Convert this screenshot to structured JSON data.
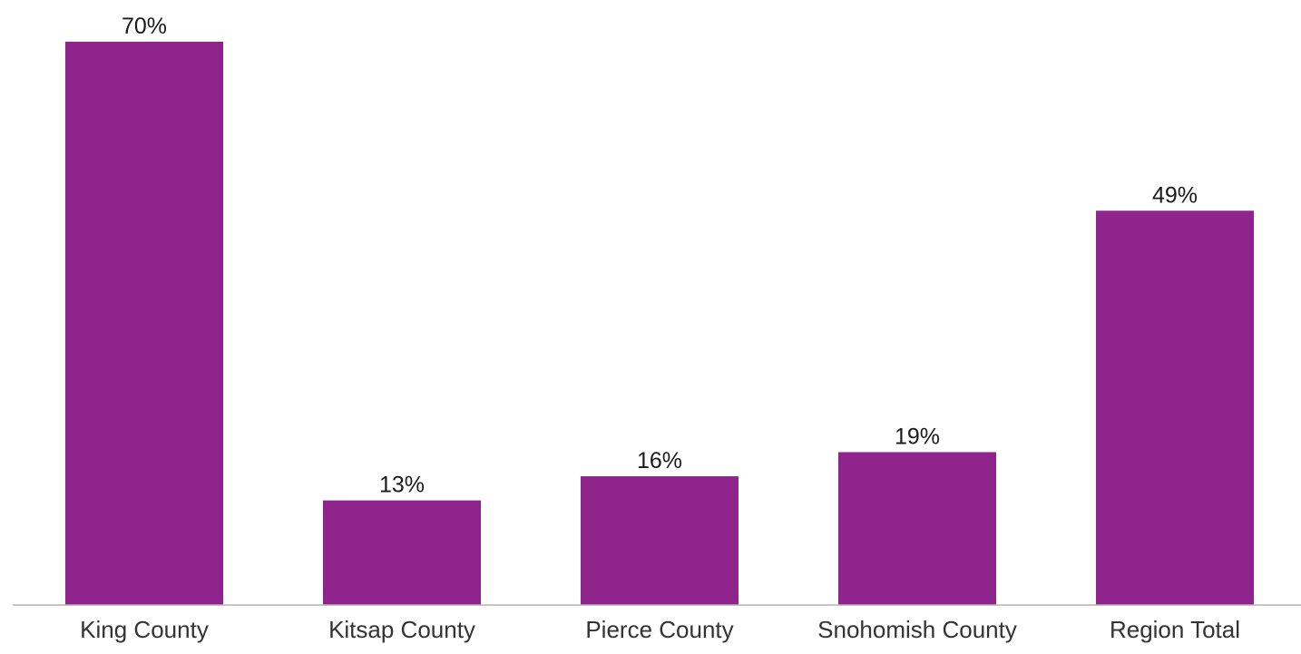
{
  "chart_data": {
    "type": "bar",
    "categories": [
      "King County",
      "Kitsap County",
      "Pierce County",
      "Snohomish County",
      "Region Total"
    ],
    "values": [
      70,
      13,
      16,
      19,
      49
    ],
    "data_labels": [
      "70%",
      "13%",
      "16%",
      "19%",
      "49%"
    ],
    "title": "",
    "xlabel": "",
    "ylabel": "",
    "ylim": [
      0,
      70
    ],
    "grid": false,
    "legend": "none",
    "colors": {
      "bar": "#8f258c",
      "axis": "#b3b3b3"
    }
  }
}
